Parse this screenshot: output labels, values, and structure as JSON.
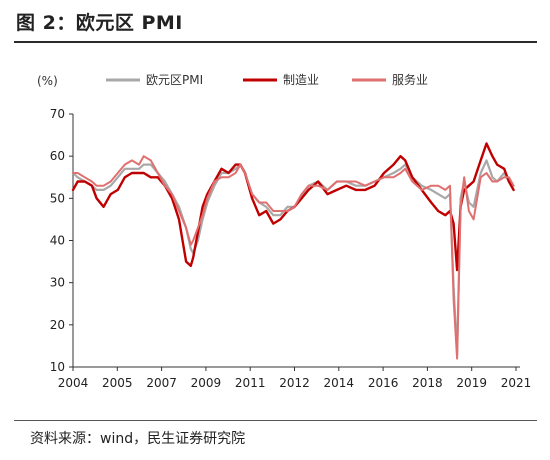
{
  "header": {
    "figure_title": "图 2：欧元区 PMI"
  },
  "footer": {
    "source": "资料来源：wind，民生证券研究院"
  },
  "colors": {
    "composite": "#a8a8a8",
    "manufacturing": "#c00000",
    "services": "#e07070"
  },
  "chart_data": {
    "type": "line",
    "title": "欧元区 PMI",
    "ylabel": "(%)",
    "xlabel": "",
    "ylim": [
      10,
      70
    ],
    "yticks": [
      10,
      20,
      30,
      40,
      50,
      60,
      70
    ],
    "xticks": [
      "2004",
      "2005",
      "2007",
      "2009",
      "2011",
      "2012",
      "2014",
      "2016",
      "2018",
      "2019",
      "2021"
    ],
    "legend_position": "top",
    "grid": false,
    "x": [
      2004.0,
      2004.2,
      2004.5,
      2004.8,
      2005.0,
      2005.3,
      2005.6,
      2005.9,
      2006.2,
      2006.5,
      2006.8,
      2007.0,
      2007.3,
      2007.6,
      2007.9,
      2008.2,
      2008.5,
      2008.8,
      2009.0,
      2009.1,
      2009.3,
      2009.5,
      2009.7,
      2010.0,
      2010.3,
      2010.6,
      2010.9,
      2011.1,
      2011.3,
      2011.6,
      2011.9,
      2012.2,
      2012.5,
      2012.8,
      2013.1,
      2013.4,
      2013.7,
      2014.0,
      2014.4,
      2014.8,
      2015.2,
      2015.6,
      2016.0,
      2016.4,
      2016.8,
      2017.2,
      2017.6,
      2017.9,
      2018.1,
      2018.4,
      2018.8,
      2019.2,
      2019.5,
      2019.8,
      2020.0,
      2020.15,
      2020.3,
      2020.45,
      2020.6,
      2020.8,
      2021.0,
      2021.3,
      2021.55,
      2021.8,
      2022.0,
      2022.3,
      2022.5,
      2022.7
    ],
    "series": [
      {
        "name": "欧元区PMI",
        "values": [
          56,
          55,
          54,
          53,
          52,
          52,
          53,
          55,
          57,
          57,
          57,
          58,
          58,
          56,
          54,
          51,
          48,
          43,
          38,
          37,
          40,
          45,
          49,
          53,
          56,
          56,
          57,
          58,
          56,
          51,
          49,
          48,
          46,
          46,
          48,
          48,
          50,
          53,
          54,
          52,
          54,
          54,
          53,
          53,
          54,
          55,
          56,
          57,
          58,
          55,
          53,
          52,
          51,
          50,
          51,
          29,
          13,
          50,
          54,
          49,
          48,
          56,
          59,
          55,
          54,
          56,
          54,
          52
        ]
      },
      {
        "name": "制造业",
        "values": [
          52,
          54,
          54,
          53,
          50,
          48,
          51,
          52,
          55,
          56,
          56,
          56,
          55,
          55,
          53,
          50,
          45,
          35,
          34,
          36,
          42,
          48,
          51,
          54,
          57,
          56,
          58,
          58,
          56,
          50,
          46,
          47,
          44,
          45,
          47,
          48,
          50,
          52,
          54,
          51,
          52,
          53,
          52,
          52,
          53,
          56,
          58,
          60,
          59,
          55,
          52,
          49,
          47,
          46,
          47,
          44,
          33,
          48,
          52,
          53,
          54,
          59,
          63,
          60,
          58,
          57,
          54,
          52
        ]
      },
      {
        "name": "服务业",
        "values": [
          56,
          56,
          55,
          54,
          53,
          53,
          54,
          56,
          58,
          59,
          58,
          60,
          59,
          56,
          53,
          51,
          47,
          43,
          39,
          40,
          43,
          46,
          50,
          54,
          55,
          55,
          56,
          58,
          56,
          51,
          49,
          49,
          47,
          47,
          47,
          48,
          51,
          53,
          53,
          52,
          54,
          54,
          54,
          53,
          54,
          55,
          55,
          56,
          57,
          54,
          52,
          53,
          53,
          52,
          53,
          26,
          12,
          48,
          55,
          47,
          45,
          55,
          56,
          54,
          54,
          55,
          55,
          53
        ]
      }
    ]
  }
}
